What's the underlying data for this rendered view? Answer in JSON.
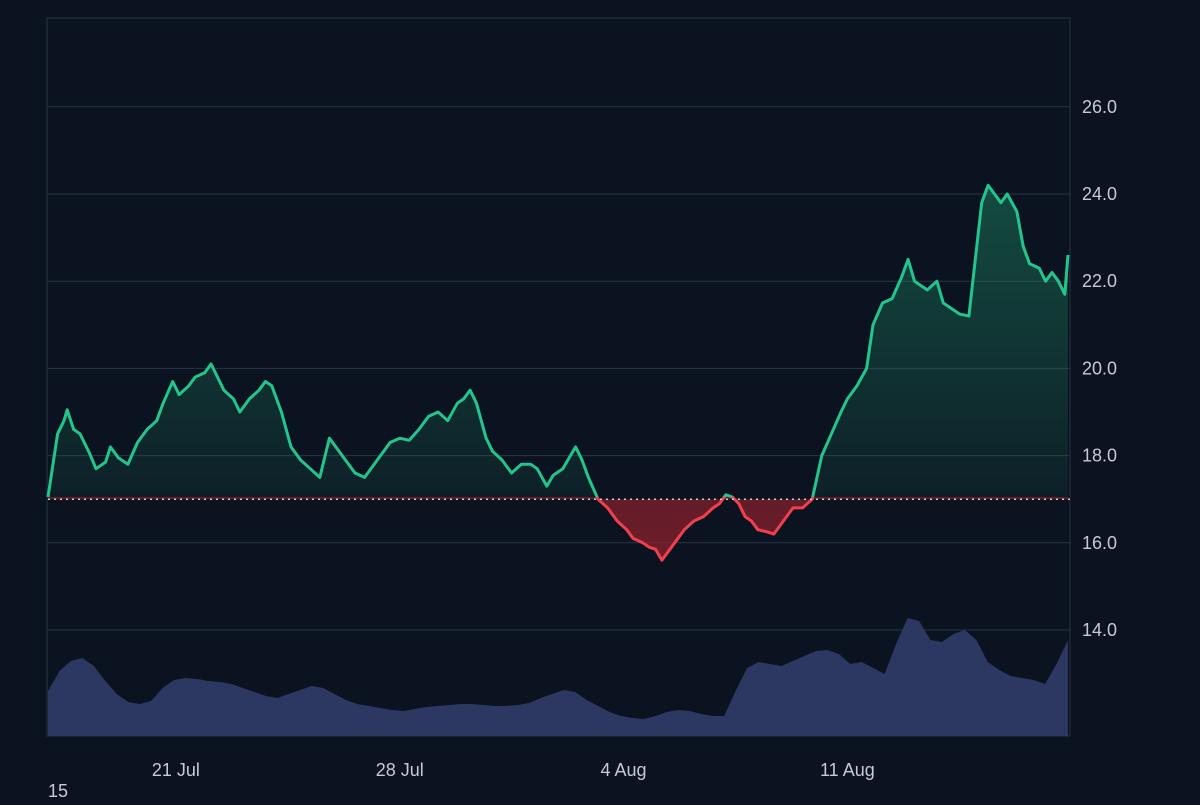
{
  "chart_data": {
    "type": "area",
    "title": "",
    "xlabel": "",
    "ylabel": "",
    "baseline": 17.0,
    "ylim": [
      13.0,
      27.0
    ],
    "y_ticks": [
      "14.0",
      "16.0",
      "18.0",
      "20.0",
      "22.0",
      "24.0",
      "26.0"
    ],
    "x_ticks": [
      "21 Jul",
      "28 Jul",
      "4 Aug",
      "11 Aug"
    ],
    "x_tick_days": [
      4,
      11,
      18,
      25
    ],
    "xlim_days": [
      0,
      31.9
    ],
    "grid": true,
    "colors": {
      "up_line": "#22c58b",
      "down_line": "#f0404e",
      "up_fill": "#1b7a5a",
      "down_fill": "#a5232f",
      "volume": "#2e3a66",
      "grid": "#2a3444",
      "baseline": "#c8cdd6",
      "tick_text": "#c5cad6",
      "background": "#0b1220"
    },
    "series": [
      {
        "points": [
          [
            0.0,
            17.05
          ],
          [
            0.3,
            18.5
          ],
          [
            0.5,
            18.8
          ],
          [
            0.6,
            19.05
          ],
          [
            0.8,
            18.6
          ],
          [
            1.0,
            18.5
          ],
          [
            1.3,
            18.05
          ],
          [
            1.5,
            17.7
          ],
          [
            1.8,
            17.85
          ],
          [
            1.95,
            18.2
          ],
          [
            2.2,
            17.95
          ],
          [
            2.5,
            17.8
          ],
          [
            2.8,
            18.3
          ],
          [
            3.1,
            18.6
          ],
          [
            3.4,
            18.8
          ],
          [
            3.6,
            19.2
          ],
          [
            3.9,
            19.7
          ],
          [
            4.1,
            19.4
          ],
          [
            4.4,
            19.6
          ],
          [
            4.6,
            19.8
          ],
          [
            4.9,
            19.9
          ],
          [
            5.1,
            20.1
          ],
          [
            5.3,
            19.8
          ],
          [
            5.5,
            19.5
          ],
          [
            5.8,
            19.3
          ],
          [
            6.0,
            19.0
          ],
          [
            6.3,
            19.3
          ],
          [
            6.6,
            19.5
          ],
          [
            6.8,
            19.7
          ],
          [
            7.0,
            19.6
          ],
          [
            7.3,
            19.0
          ],
          [
            7.6,
            18.2
          ],
          [
            7.9,
            17.9
          ],
          [
            8.2,
            17.7
          ],
          [
            8.5,
            17.5
          ],
          [
            8.8,
            18.4
          ],
          [
            9.0,
            18.2
          ],
          [
            9.3,
            17.9
          ],
          [
            9.6,
            17.6
          ],
          [
            9.9,
            17.5
          ],
          [
            10.1,
            17.7
          ],
          [
            10.4,
            18.0
          ],
          [
            10.7,
            18.3
          ],
          [
            11.0,
            18.4
          ],
          [
            11.3,
            18.35
          ],
          [
            11.6,
            18.6
          ],
          [
            11.9,
            18.9
          ],
          [
            12.2,
            19.0
          ],
          [
            12.5,
            18.8
          ],
          [
            12.8,
            19.2
          ],
          [
            13.0,
            19.3
          ],
          [
            13.2,
            19.5
          ],
          [
            13.4,
            19.2
          ],
          [
            13.7,
            18.4
          ],
          [
            13.9,
            18.1
          ],
          [
            14.2,
            17.9
          ],
          [
            14.5,
            17.6
          ],
          [
            14.8,
            17.8
          ],
          [
            15.1,
            17.8
          ],
          [
            15.3,
            17.7
          ],
          [
            15.6,
            17.3
          ],
          [
            15.8,
            17.55
          ],
          [
            16.1,
            17.7
          ],
          [
            16.3,
            17.95
          ],
          [
            16.5,
            18.2
          ],
          [
            16.7,
            17.9
          ],
          [
            16.9,
            17.5
          ],
          [
            17.2,
            17.0
          ],
          [
            17.5,
            16.8
          ],
          [
            17.8,
            16.5
          ],
          [
            18.1,
            16.3
          ],
          [
            18.3,
            16.1
          ],
          [
            18.6,
            16.0
          ],
          [
            18.8,
            15.9
          ],
          [
            19.0,
            15.85
          ],
          [
            19.2,
            15.6
          ],
          [
            19.4,
            15.8
          ],
          [
            19.6,
            16.0
          ],
          [
            19.9,
            16.3
          ],
          [
            20.2,
            16.5
          ],
          [
            20.5,
            16.6
          ],
          [
            20.8,
            16.8
          ],
          [
            21.0,
            16.9
          ],
          [
            21.2,
            17.1
          ],
          [
            21.4,
            17.05
          ],
          [
            21.6,
            16.9
          ],
          [
            21.8,
            16.6
          ],
          [
            22.0,
            16.5
          ],
          [
            22.2,
            16.3
          ],
          [
            22.5,
            16.25
          ],
          [
            22.7,
            16.2
          ],
          [
            22.9,
            16.4
          ],
          [
            23.1,
            16.6
          ],
          [
            23.3,
            16.8
          ],
          [
            23.6,
            16.8
          ],
          [
            23.9,
            17.0
          ],
          [
            24.2,
            18.0
          ],
          [
            24.5,
            18.5
          ],
          [
            24.8,
            19.0
          ],
          [
            25.0,
            19.3
          ],
          [
            25.3,
            19.6
          ],
          [
            25.6,
            20.0
          ],
          [
            25.8,
            21.0
          ],
          [
            26.1,
            21.5
          ],
          [
            26.4,
            21.6
          ],
          [
            26.7,
            22.1
          ],
          [
            26.9,
            22.5
          ],
          [
            27.1,
            22.0
          ],
          [
            27.3,
            21.9
          ],
          [
            27.5,
            21.8
          ],
          [
            27.8,
            22.0
          ],
          [
            28.0,
            21.5
          ],
          [
            28.3,
            21.35
          ],
          [
            28.5,
            21.25
          ],
          [
            28.8,
            21.2
          ],
          [
            29.0,
            22.5
          ],
          [
            29.2,
            23.8
          ],
          [
            29.4,
            24.2
          ],
          [
            29.6,
            24.0
          ],
          [
            29.8,
            23.8
          ],
          [
            30.0,
            24.0
          ],
          [
            30.3,
            23.6
          ],
          [
            30.5,
            22.8
          ],
          [
            30.7,
            22.4
          ],
          [
            31.0,
            22.3
          ],
          [
            31.2,
            22.0
          ],
          [
            31.4,
            22.2
          ],
          [
            31.6,
            22.0
          ],
          [
            31.8,
            21.7
          ],
          [
            31.9,
            22.6
          ]
        ]
      }
    ],
    "volume_series": [
      0.45,
      0.65,
      0.75,
      0.78,
      0.7,
      0.55,
      0.42,
      0.34,
      0.32,
      0.35,
      0.48,
      0.56,
      0.58,
      0.57,
      0.55,
      0.54,
      0.52,
      0.48,
      0.44,
      0.4,
      0.38,
      0.42,
      0.46,
      0.5,
      0.48,
      0.42,
      0.36,
      0.32,
      0.3,
      0.28,
      0.26,
      0.25,
      0.27,
      0.29,
      0.3,
      0.31,
      0.32,
      0.32,
      0.31,
      0.3,
      0.3,
      0.31,
      0.33,
      0.38,
      0.42,
      0.46,
      0.44,
      0.36,
      0.3,
      0.24,
      0.2,
      0.18,
      0.17,
      0.2,
      0.24,
      0.26,
      0.25,
      0.22,
      0.2,
      0.2,
      0.45,
      0.68,
      0.74,
      0.72,
      0.7,
      0.75,
      0.8,
      0.85,
      0.86,
      0.82,
      0.72,
      0.74,
      0.68,
      0.62,
      0.92,
      1.18,
      1.15,
      0.96,
      0.94,
      1.02,
      1.06,
      0.96,
      0.74,
      0.66,
      0.6,
      0.58,
      0.56,
      0.52,
      0.72,
      0.96
    ]
  },
  "corner_label": "15"
}
